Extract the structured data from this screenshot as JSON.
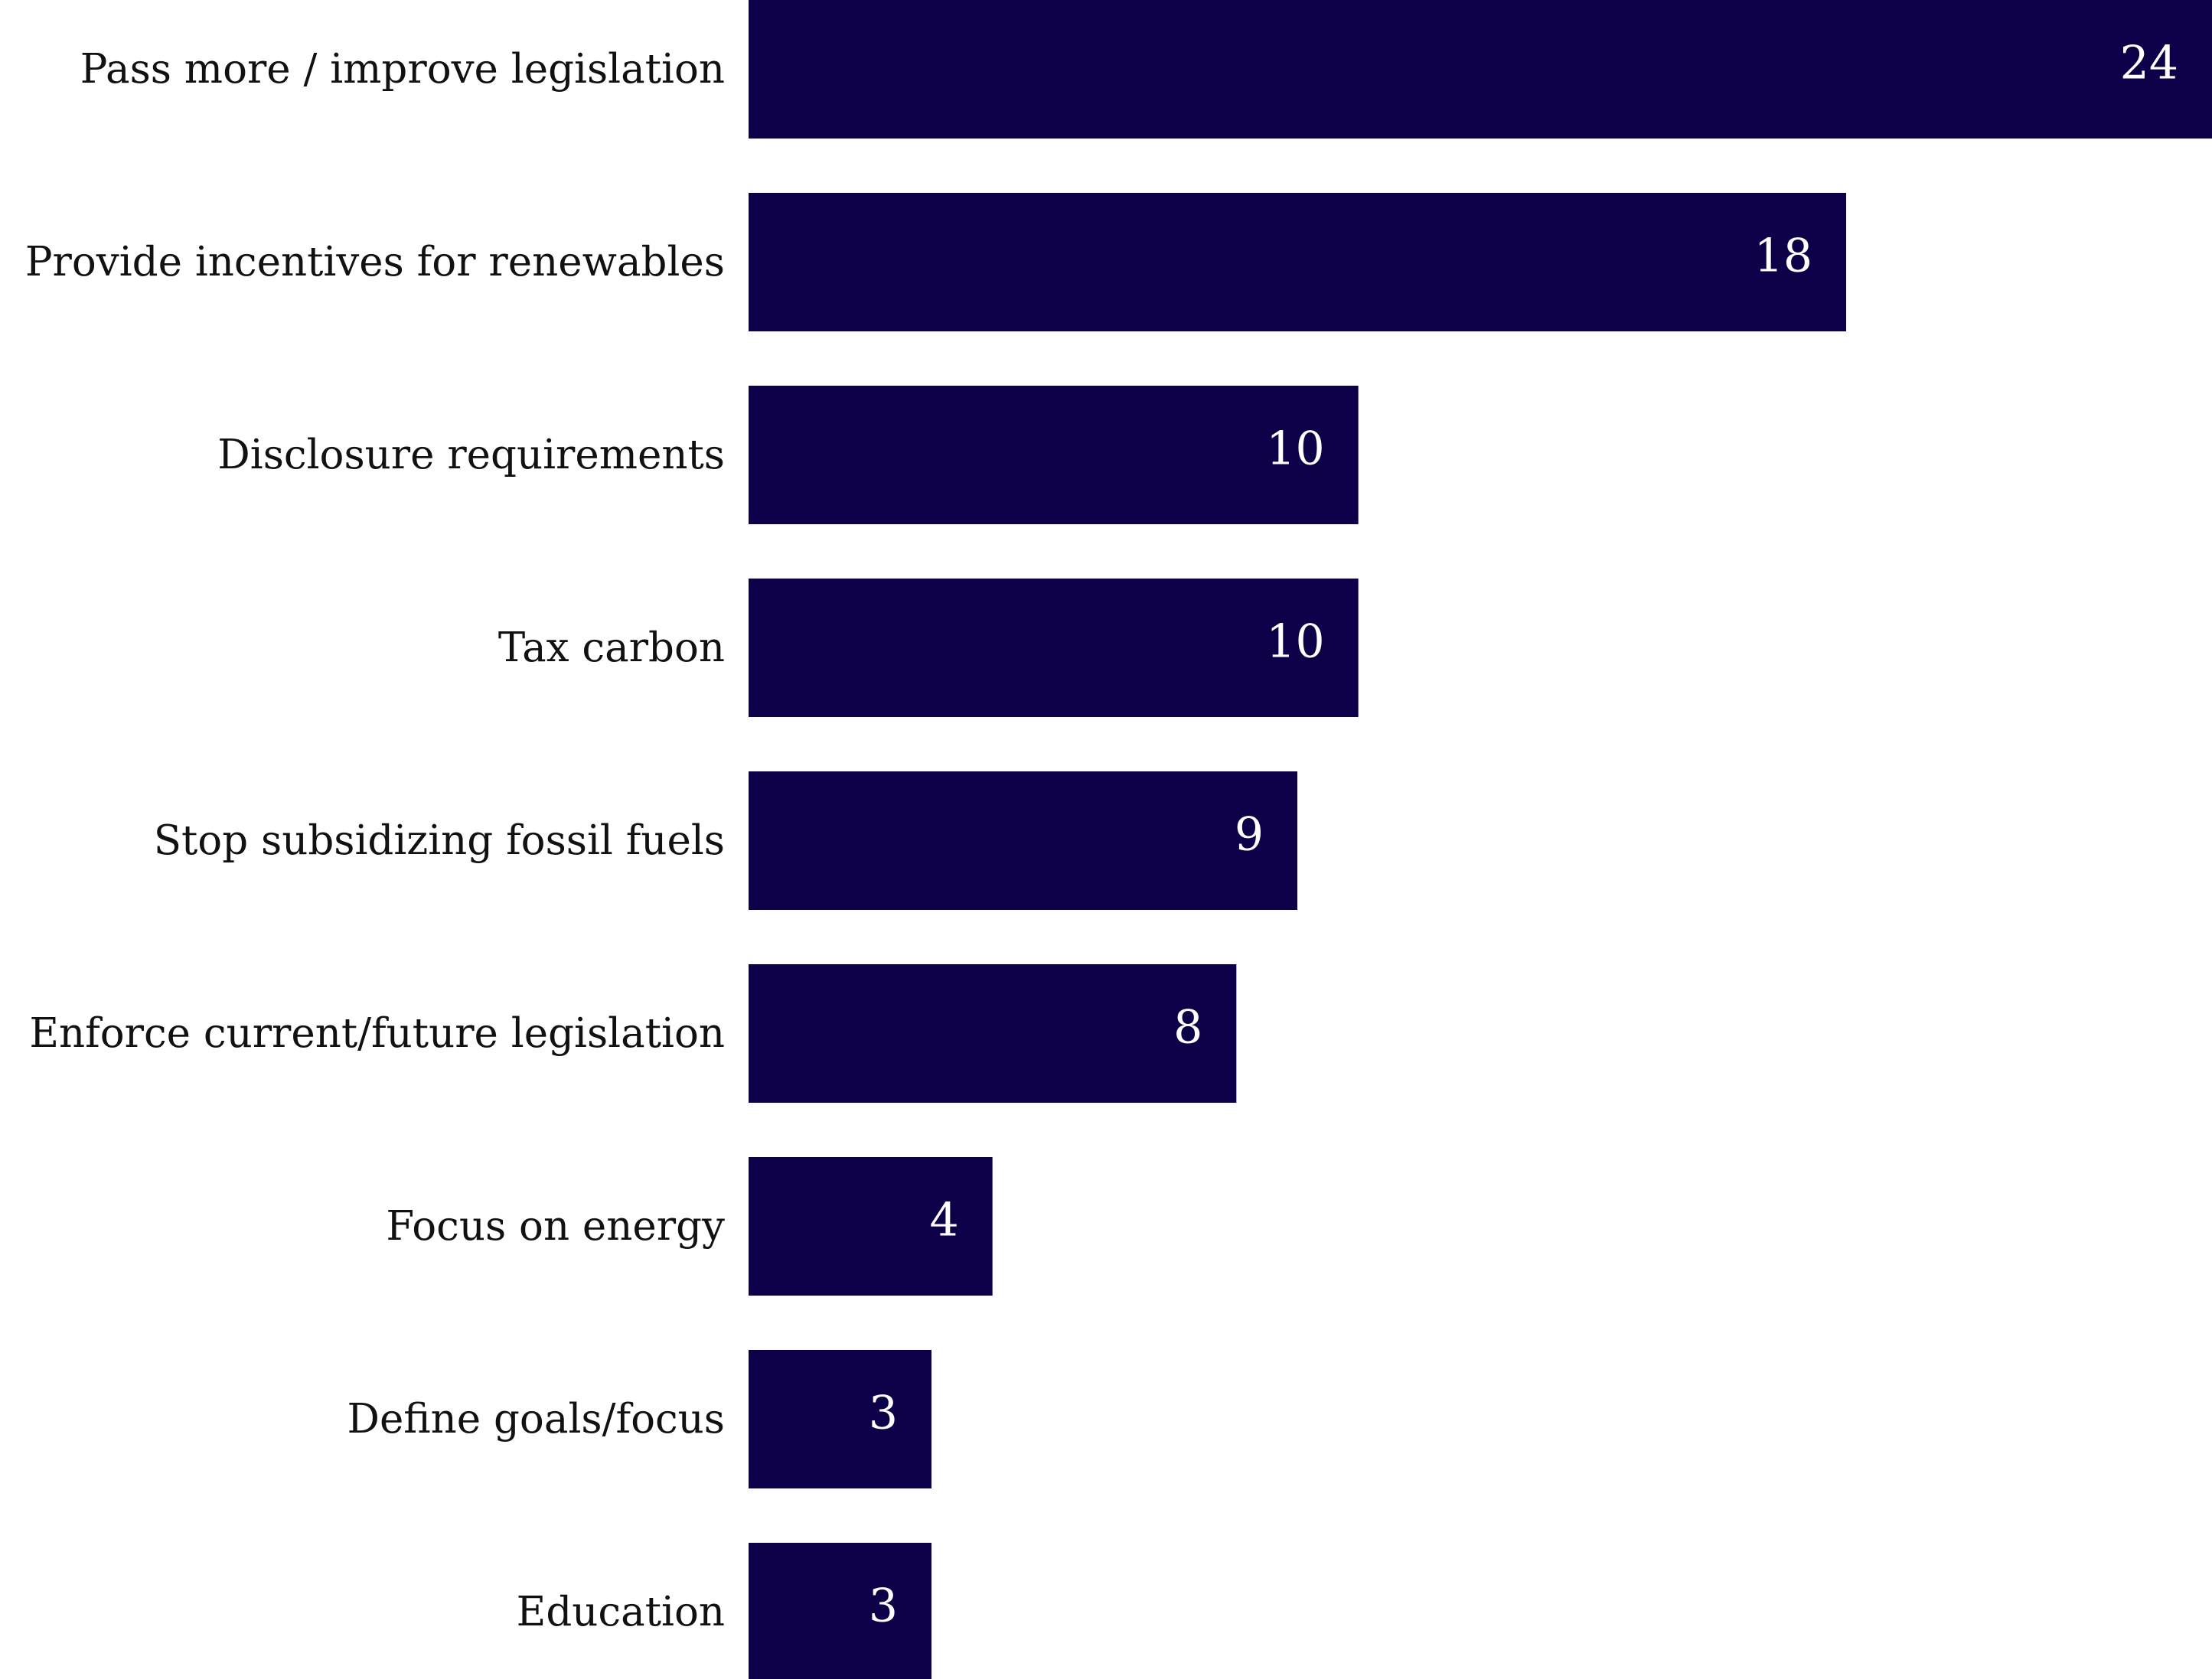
{
  "chart_data": {
    "type": "bar",
    "orientation": "horizontal",
    "title": "",
    "xlabel": "",
    "ylabel": "",
    "xlim": [
      0,
      24
    ],
    "grid": false,
    "legend": "none",
    "categories": [
      "Pass more / improve legislation",
      "Provide incentives for renewables",
      "Disclosure requirements",
      "Tax carbon",
      "Stop subsidizing fossil fuels",
      "Enforce current/future legislation",
      "Focus on energy",
      "Define goals/focus",
      "Education"
    ],
    "values": [
      24,
      18,
      10,
      10,
      9,
      8,
      4,
      3,
      3
    ],
    "data_labels": [
      "24",
      "18",
      "10",
      "10",
      "9",
      "8",
      "4",
      "3",
      "3"
    ],
    "colors": {
      "bar": "#0e0048",
      "value_label": "#ffffff",
      "category_label": "#111111",
      "background": "#ffffff"
    }
  }
}
